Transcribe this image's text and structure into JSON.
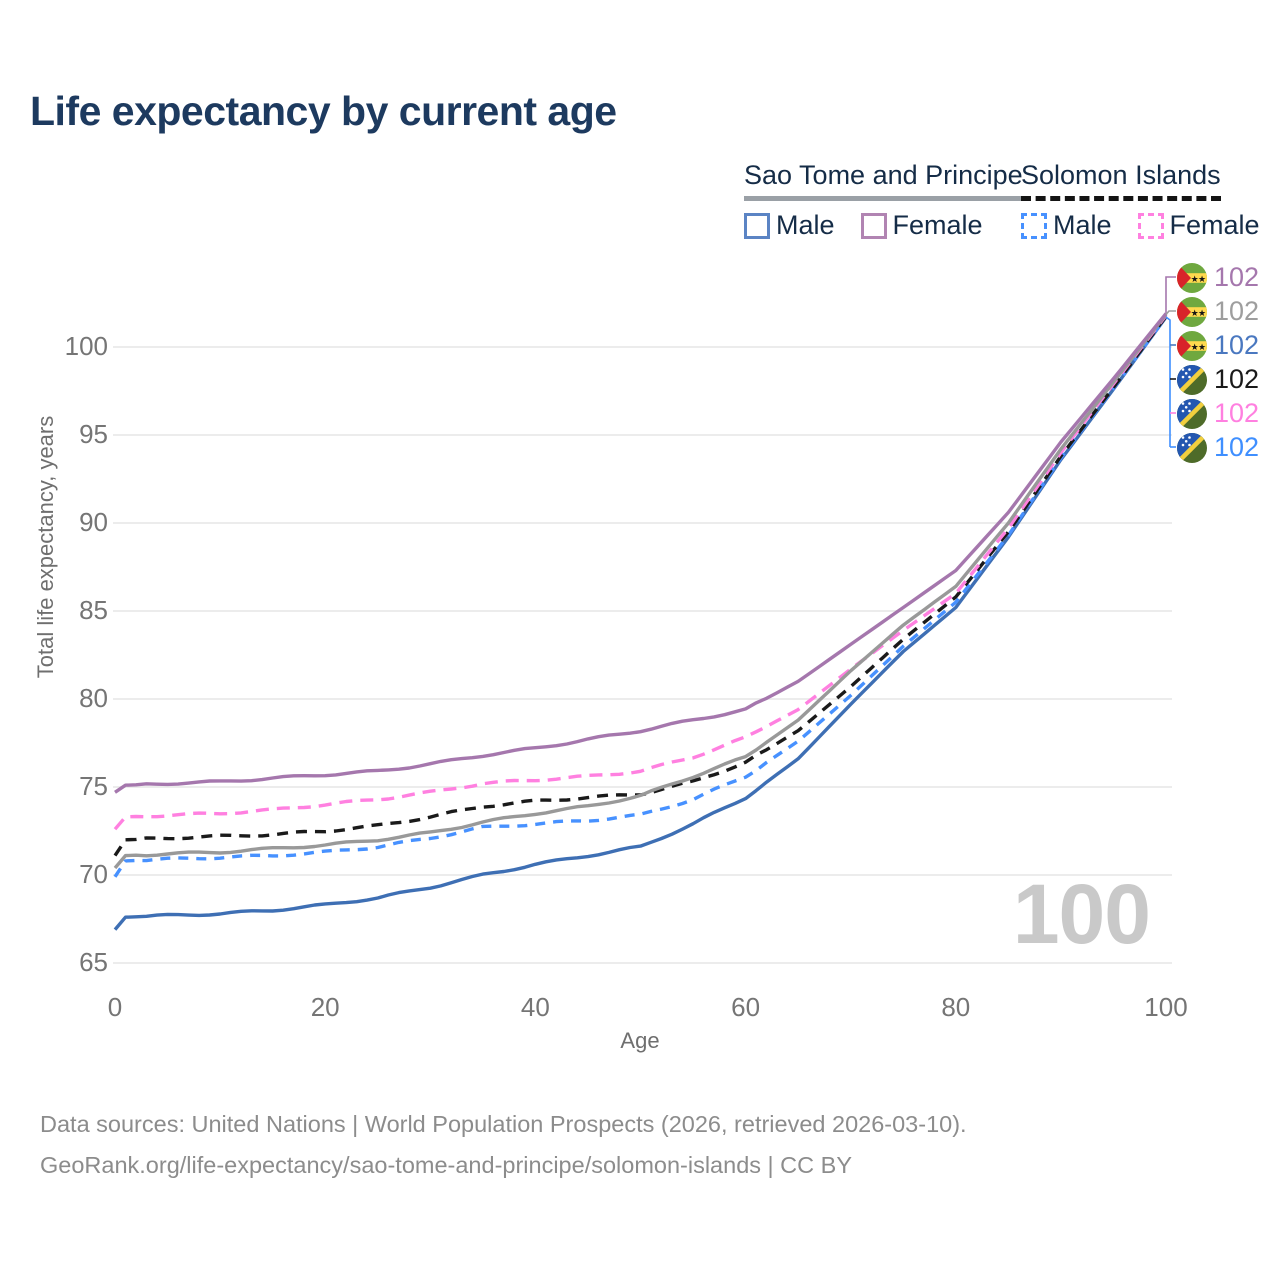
{
  "title": "Life expectancy by current age",
  "watermark": "100",
  "legend": {
    "groups": [
      {
        "label": "Sao Tome and Principe",
        "line_style": "solid",
        "underline_color": "#9aa0a6",
        "items": [
          {
            "label": "Male",
            "color": "#5b84c4",
            "dashed": false
          },
          {
            "label": "Female",
            "color": "#b184b2",
            "dashed": false
          }
        ]
      },
      {
        "label": "Solomon Islands",
        "line_style": "dashed",
        "underline_color": "#141414",
        "items": [
          {
            "label": "Male",
            "color": "#4791ff",
            "dashed": true
          },
          {
            "label": "Female",
            "color": "#ff80e0",
            "dashed": true
          }
        ]
      }
    ]
  },
  "chart_data": {
    "type": "line",
    "title": "Life expectancy by current age",
    "xlabel": "Age",
    "ylabel": "Total life expectancy, years",
    "xticks": [
      0,
      20,
      40,
      60,
      80,
      100
    ],
    "yticks": [
      65,
      70,
      75,
      80,
      85,
      90,
      95,
      100
    ],
    "xlim": [
      0,
      100
    ],
    "ylim": [
      64,
      103
    ],
    "grid": "horizontal",
    "legend_position": "top-right",
    "x": [
      0,
      1,
      5,
      10,
      15,
      20,
      25,
      30,
      35,
      40,
      45,
      50,
      55,
      60,
      65,
      70,
      75,
      80,
      85,
      90,
      95,
      100
    ],
    "series": [
      {
        "name": "Sao Tome and Principe Female",
        "color": "#a577ad",
        "dash": null,
        "end_label": "102",
        "values": [
          74.7,
          75.1,
          75.2,
          75.3,
          75.5,
          75.7,
          75.9,
          76.3,
          76.8,
          77.2,
          77.7,
          78.2,
          78.8,
          79.4,
          81.0,
          83.1,
          85.2,
          87.3,
          90.6,
          94.6,
          98.2,
          101.9
        ]
      },
      {
        "name": "Sao Tome and Principe Total",
        "color": "#999999",
        "dash": null,
        "end_label": "102",
        "values": [
          70.4,
          71.1,
          71.2,
          71.3,
          71.5,
          71.7,
          72.0,
          72.4,
          73.0,
          73.5,
          73.9,
          74.5,
          75.6,
          76.7,
          78.8,
          81.6,
          84.2,
          86.4,
          90.0,
          94.2,
          98.0,
          101.85
        ]
      },
      {
        "name": "Sao Tome and Principe Male",
        "color": "#3e6fb4",
        "dash": null,
        "end_label": "102",
        "values": [
          66.9,
          67.6,
          67.7,
          67.8,
          68.0,
          68.3,
          68.7,
          69.3,
          70.0,
          70.6,
          71.1,
          71.6,
          72.9,
          74.4,
          76.6,
          79.7,
          82.7,
          85.2,
          89.2,
          93.6,
          97.6,
          101.7
        ]
      },
      {
        "name": "Solomon Islands Total",
        "color": "#1a1a1a",
        "dash": "11 8",
        "end_label": "102",
        "values": [
          71.1,
          72.0,
          72.1,
          72.2,
          72.3,
          72.5,
          72.8,
          73.3,
          73.9,
          74.2,
          74.4,
          74.6,
          75.3,
          76.4,
          78.2,
          80.7,
          83.4,
          85.8,
          89.5,
          93.8,
          97.7,
          101.75
        ]
      },
      {
        "name": "Solomon Islands Female",
        "color": "#ff80e0",
        "dash": "13 8",
        "end_label": "102",
        "values": [
          72.6,
          73.3,
          73.4,
          73.5,
          73.7,
          74.0,
          74.3,
          74.7,
          75.2,
          75.4,
          75.6,
          75.9,
          76.7,
          77.8,
          79.4,
          81.7,
          83.9,
          86.0,
          89.7,
          94.0,
          97.9,
          101.8
        ]
      },
      {
        "name": "Solomon Islands Male",
        "color": "#4791ff",
        "dash": "10 8",
        "end_label": "102",
        "values": [
          69.9,
          70.8,
          70.9,
          71.0,
          71.1,
          71.3,
          71.6,
          72.1,
          72.7,
          72.9,
          73.1,
          73.4,
          74.3,
          75.6,
          77.6,
          80.2,
          83.0,
          85.5,
          89.3,
          93.7,
          97.65,
          101.7
        ]
      }
    ]
  },
  "right_labels": [
    {
      "value": "102",
      "color": "#a577ad",
      "flag": "stp",
      "series": "Sao Tome and Principe Female"
    },
    {
      "value": "102",
      "color": "#9e9e9e",
      "flag": "stp",
      "series": "Sao Tome and Principe Total"
    },
    {
      "value": "102",
      "color": "#4a78c0",
      "flag": "stp",
      "series": "Sao Tome and Principe Male"
    },
    {
      "value": "102",
      "color": "#1a1a1a",
      "flag": "sol",
      "series": "Solomon Islands Total"
    },
    {
      "value": "102",
      "color": "#ff80e0",
      "flag": "sol",
      "series": "Solomon Islands Female"
    },
    {
      "value": "102",
      "color": "#3f8fff",
      "flag": "sol",
      "series": "Solomon Islands Male"
    }
  ],
  "footer": {
    "line1": "Data sources: United Nations | World Population Prospects (2026, retrieved 2026-03-10).",
    "line2": "GeoRank.org/life-expectancy/sao-tome-and-principe/solomon-islands | CC BY"
  }
}
